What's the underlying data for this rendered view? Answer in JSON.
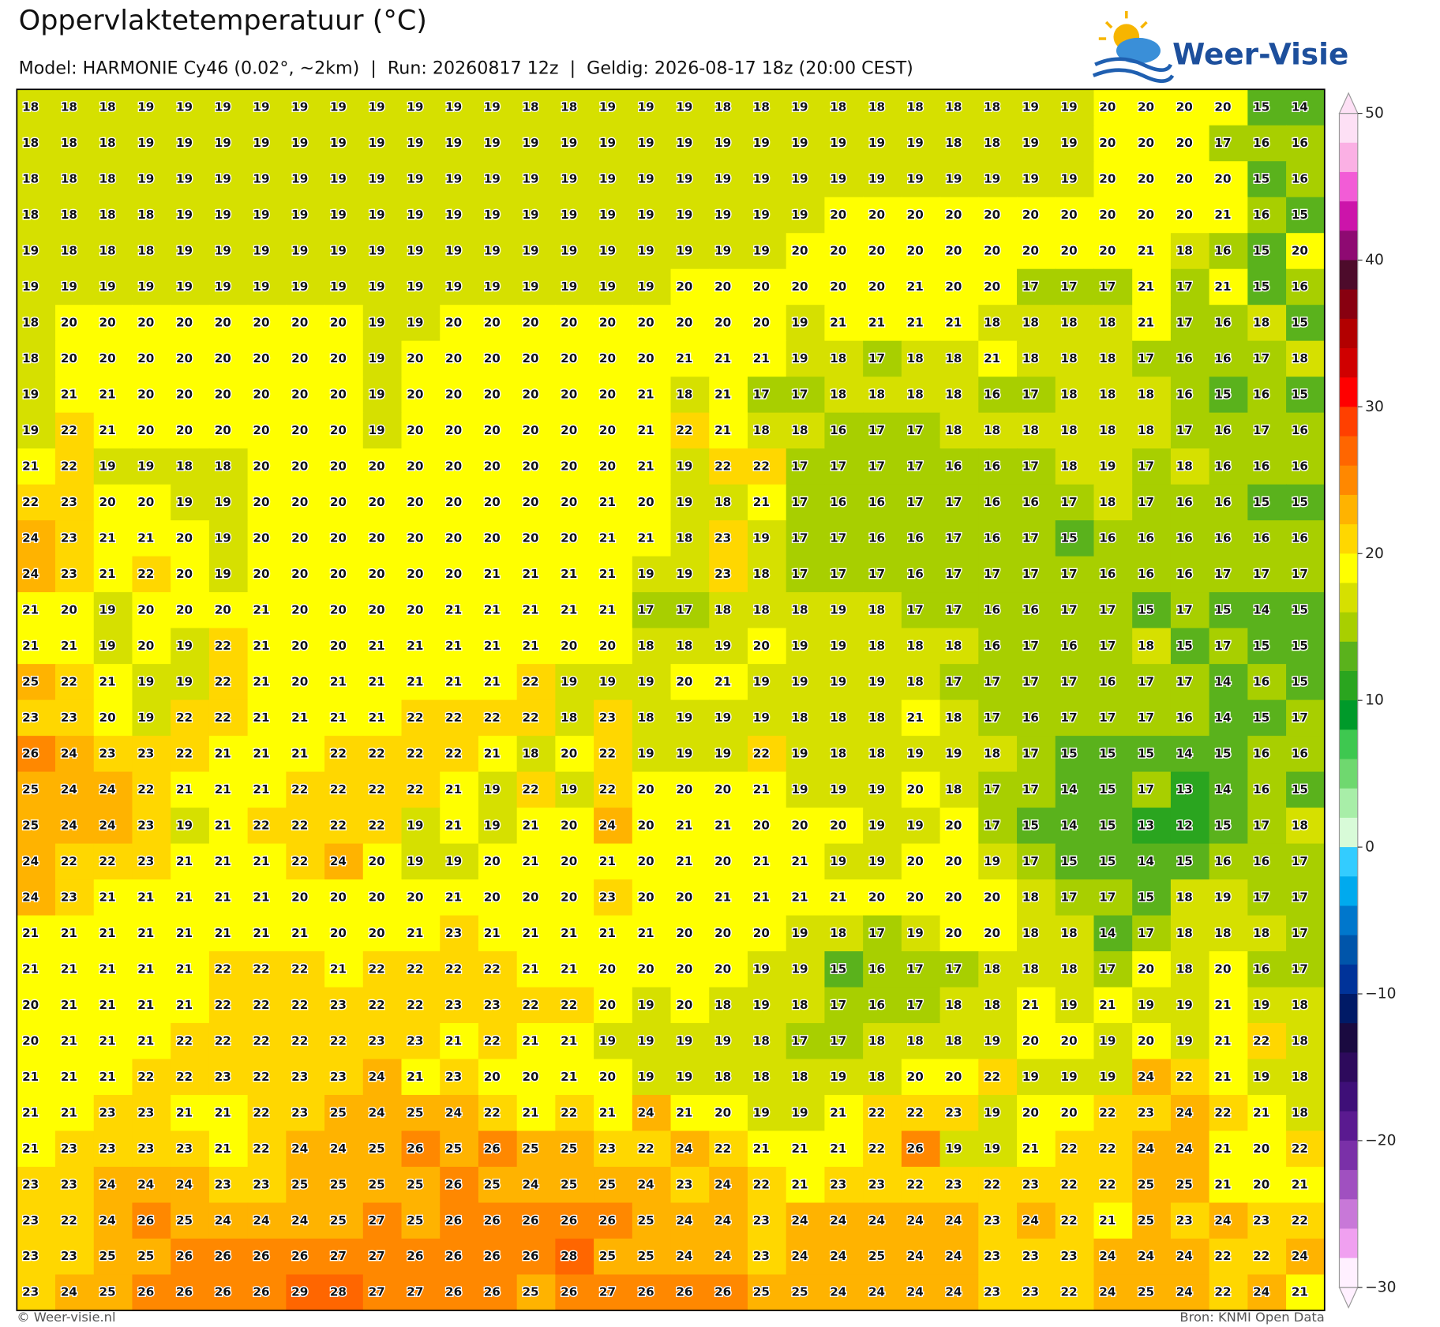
{
  "header": {
    "title": "Oppervlaktetemperatuur (°C)",
    "subtitle": "Model: HARMONIE Cy46 (0.02°, ~2km)  |  Run: 20260817 12z  |  Geldig: 2026-08-17 18z (20:00 CEST)",
    "logo": "Weer-Visie"
  },
  "footer": {
    "left": "© Weer-visie.nl",
    "right": "Bron: KNMI Open Data"
  },
  "colorbar": {
    "lim": [
      -30,
      50
    ],
    "colors": [
      "#fde0f5",
      "#fbb0e4",
      "#f25cd6",
      "#cc14aa",
      "#8e0a72",
      "#4d0b2b",
      "#880010",
      "#b20000",
      "#d00000",
      "#ff0000",
      "#ff4000",
      "#ff6600",
      "#ff8800",
      "#ffb300",
      "#ffd700",
      "#ffff00",
      "#d6e000",
      "#a8cf00",
      "#5ab21c",
      "#2aa51f",
      "#009a2a",
      "#3ec850",
      "#6fd86f",
      "#a8eea8",
      "#d8fbd8",
      "#33ccff",
      "#00aaee",
      "#0077cc",
      "#0055aa",
      "#003399",
      "#001a66",
      "#1a0a40",
      "#2d0a5c",
      "#3e0f78",
      "#5a1a90",
      "#7a30a8",
      "#a050c0",
      "#c878d8",
      "#f0a0f0",
      "#fff0ff"
    ],
    "ticks": [
      50,
      40,
      30,
      20,
      10,
      0,
      {
        "value": -10,
        "label": "−10"
      },
      {
        "value": -20,
        "label": "−20"
      },
      {
        "value": -30,
        "label": "−30"
      }
    ]
  },
  "grid": {
    "rows": [
      [
        18,
        18,
        18,
        19,
        19,
        19,
        19,
        19,
        19,
        19,
        19,
        19,
        19,
        18,
        18,
        19,
        19,
        19,
        18,
        18,
        19,
        18,
        18,
        18,
        18,
        18,
        19,
        19,
        20,
        20,
        20,
        20,
        15,
        14
      ],
      [
        18,
        18,
        18,
        19,
        19,
        19,
        19,
        19,
        19,
        19,
        19,
        19,
        19,
        19,
        19,
        19,
        19,
        19,
        19,
        19,
        19,
        19,
        19,
        19,
        18,
        18,
        19,
        19,
        20,
        20,
        20,
        17,
        16,
        16
      ],
      [
        18,
        18,
        18,
        19,
        19,
        19,
        19,
        19,
        19,
        19,
        19,
        19,
        19,
        19,
        19,
        19,
        19,
        19,
        19,
        19,
        19,
        19,
        19,
        19,
        19,
        19,
        19,
        19,
        20,
        20,
        20,
        20,
        15,
        16
      ],
      [
        18,
        18,
        18,
        18,
        19,
        19,
        19,
        19,
        19,
        19,
        19,
        19,
        19,
        19,
        19,
        19,
        19,
        19,
        19,
        19,
        19,
        20,
        20,
        20,
        20,
        20,
        20,
        20,
        20,
        20,
        20,
        21,
        16,
        15
      ],
      [
        19,
        18,
        18,
        18,
        19,
        19,
        19,
        19,
        19,
        19,
        19,
        19,
        19,
        19,
        19,
        19,
        19,
        19,
        19,
        19,
        20,
        20,
        20,
        20,
        20,
        20,
        20,
        20,
        20,
        21,
        18,
        16,
        15,
        20
      ],
      [
        19,
        19,
        19,
        19,
        19,
        19,
        19,
        19,
        19,
        19,
        19,
        19,
        19,
        19,
        19,
        19,
        19,
        20,
        20,
        20,
        20,
        20,
        20,
        21,
        20,
        20,
        17,
        17,
        17,
        21,
        17,
        21,
        15,
        16
      ],
      [
        18,
        20,
        20,
        20,
        20,
        20,
        20,
        20,
        20,
        19,
        19,
        20,
        20,
        20,
        20,
        20,
        20,
        20,
        20,
        20,
        19,
        21,
        21,
        21,
        21,
        18,
        18,
        18,
        18,
        21,
        17,
        16,
        18,
        15
      ],
      [
        18,
        20,
        20,
        20,
        20,
        20,
        20,
        20,
        20,
        19,
        20,
        20,
        20,
        20,
        20,
        20,
        20,
        21,
        21,
        21,
        19,
        18,
        17,
        18,
        18,
        21,
        18,
        18,
        18,
        17,
        16,
        16,
        17,
        18
      ],
      [
        19,
        21,
        21,
        20,
        20,
        20,
        20,
        20,
        20,
        19,
        20,
        20,
        20,
        20,
        20,
        20,
        21,
        18,
        21,
        17,
        17,
        18,
        18,
        18,
        18,
        16,
        17,
        18,
        18,
        18,
        16,
        15,
        16,
        15
      ],
      [
        19,
        22,
        21,
        20,
        20,
        20,
        20,
        20,
        20,
        19,
        20,
        20,
        20,
        20,
        20,
        20,
        21,
        22,
        21,
        18,
        18,
        16,
        17,
        17,
        18,
        18,
        18,
        18,
        18,
        18,
        17,
        16,
        17,
        16
      ],
      [
        21,
        22,
        19,
        19,
        18,
        18,
        20,
        20,
        20,
        20,
        20,
        20,
        20,
        20,
        20,
        20,
        21,
        19,
        22,
        22,
        17,
        17,
        17,
        17,
        16,
        16,
        17,
        18,
        19,
        17,
        18,
        16,
        16,
        16
      ],
      [
        22,
        23,
        20,
        20,
        19,
        19,
        20,
        20,
        20,
        20,
        20,
        20,
        20,
        20,
        20,
        21,
        20,
        19,
        18,
        21,
        17,
        16,
        16,
        17,
        17,
        16,
        16,
        17,
        18,
        17,
        16,
        16,
        15,
        15
      ],
      [
        24,
        23,
        21,
        21,
        20,
        19,
        20,
        20,
        20,
        20,
        20,
        20,
        20,
        20,
        20,
        21,
        21,
        18,
        23,
        19,
        17,
        17,
        16,
        16,
        17,
        16,
        17,
        15,
        16,
        16,
        16,
        16,
        16,
        16
      ],
      [
        24,
        23,
        21,
        22,
        20,
        19,
        20,
        20,
        20,
        20,
        20,
        20,
        21,
        21,
        21,
        21,
        19,
        19,
        23,
        18,
        17,
        17,
        17,
        16,
        17,
        17,
        17,
        17,
        16,
        16,
        16,
        17,
        17,
        17
      ],
      [
        21,
        20,
        19,
        20,
        20,
        20,
        21,
        20,
        20,
        20,
        20,
        21,
        21,
        21,
        21,
        21,
        17,
        17,
        18,
        18,
        18,
        19,
        18,
        17,
        17,
        16,
        16,
        17,
        17,
        15,
        17,
        15,
        14,
        15
      ],
      [
        21,
        21,
        19,
        20,
        19,
        22,
        21,
        20,
        20,
        21,
        21,
        21,
        21,
        21,
        20,
        20,
        18,
        18,
        19,
        20,
        19,
        19,
        18,
        18,
        18,
        16,
        17,
        16,
        17,
        18,
        15,
        17,
        15,
        15
      ],
      [
        25,
        22,
        21,
        19,
        19,
        22,
        21,
        20,
        21,
        21,
        21,
        21,
        21,
        22,
        19,
        19,
        19,
        20,
        21,
        19,
        19,
        19,
        19,
        18,
        17,
        17,
        17,
        17,
        16,
        17,
        17,
        14,
        16,
        15
      ],
      [
        23,
        23,
        20,
        19,
        22,
        22,
        21,
        21,
        21,
        21,
        22,
        22,
        22,
        22,
        18,
        23,
        18,
        19,
        19,
        19,
        18,
        18,
        18,
        21,
        18,
        17,
        16,
        17,
        17,
        17,
        16,
        14,
        15,
        17
      ],
      [
        26,
        24,
        23,
        23,
        22,
        21,
        21,
        21,
        22,
        22,
        22,
        22,
        21,
        18,
        20,
        22,
        19,
        19,
        19,
        22,
        19,
        18,
        18,
        19,
        19,
        18,
        17,
        15,
        15,
        15,
        14,
        15,
        16,
        16
      ],
      [
        25,
        24,
        24,
        22,
        21,
        21,
        21,
        22,
        22,
        22,
        22,
        21,
        19,
        22,
        19,
        22,
        20,
        20,
        20,
        21,
        19,
        19,
        19,
        20,
        18,
        17,
        17,
        14,
        15,
        17,
        13,
        14,
        16,
        15
      ],
      [
        25,
        24,
        24,
        23,
        19,
        21,
        22,
        22,
        22,
        22,
        19,
        21,
        19,
        21,
        20,
        24,
        20,
        21,
        21,
        20,
        20,
        20,
        19,
        19,
        20,
        17,
        15,
        14,
        15,
        13,
        12,
        15,
        17,
        18
      ],
      [
        24,
        22,
        22,
        23,
        21,
        21,
        21,
        22,
        24,
        20,
        19,
        19,
        20,
        21,
        20,
        21,
        20,
        21,
        20,
        21,
        21,
        19,
        19,
        20,
        20,
        19,
        17,
        15,
        15,
        14,
        15,
        16,
        16,
        17
      ],
      [
        24,
        23,
        21,
        21,
        21,
        21,
        21,
        20,
        20,
        20,
        20,
        21,
        20,
        20,
        20,
        23,
        20,
        20,
        21,
        21,
        21,
        21,
        20,
        20,
        20,
        20,
        18,
        17,
        17,
        15,
        18,
        19,
        17,
        17
      ],
      [
        21,
        21,
        21,
        21,
        21,
        21,
        21,
        21,
        20,
        20,
        21,
        23,
        21,
        21,
        21,
        21,
        21,
        20,
        20,
        20,
        19,
        18,
        17,
        19,
        20,
        20,
        18,
        18,
        14,
        17,
        18,
        18,
        18,
        17
      ],
      [
        21,
        21,
        21,
        21,
        21,
        22,
        22,
        22,
        21,
        22,
        22,
        22,
        22,
        21,
        21,
        20,
        20,
        20,
        20,
        19,
        19,
        15,
        16,
        17,
        17,
        18,
        18,
        18,
        17,
        20,
        18,
        20,
        16,
        17
      ],
      [
        20,
        21,
        21,
        21,
        21,
        22,
        22,
        22,
        23,
        22,
        22,
        23,
        23,
        22,
        22,
        20,
        19,
        20,
        18,
        19,
        18,
        17,
        16,
        17,
        18,
        18,
        21,
        19,
        21,
        19,
        19,
        21,
        19,
        18
      ],
      [
        20,
        21,
        21,
        21,
        22,
        22,
        22,
        22,
        22,
        23,
        23,
        21,
        22,
        21,
        21,
        19,
        19,
        19,
        19,
        18,
        17,
        17,
        18,
        18,
        18,
        19,
        20,
        20,
        19,
        20,
        19,
        21,
        22,
        18
      ],
      [
        21,
        21,
        21,
        22,
        22,
        23,
        22,
        23,
        23,
        24,
        21,
        23,
        20,
        20,
        21,
        20,
        19,
        19,
        18,
        18,
        18,
        19,
        18,
        20,
        20,
        22,
        19,
        19,
        19,
        24,
        22,
        21,
        19,
        18
      ],
      [
        21,
        21,
        23,
        23,
        21,
        21,
        22,
        23,
        25,
        24,
        25,
        24,
        22,
        21,
        22,
        21,
        24,
        21,
        20,
        19,
        19,
        21,
        22,
        22,
        23,
        19,
        20,
        20,
        22,
        23,
        24,
        22,
        21,
        18
      ],
      [
        21,
        23,
        23,
        23,
        23,
        21,
        22,
        24,
        24,
        25,
        26,
        25,
        26,
        25,
        25,
        23,
        22,
        24,
        22,
        21,
        21,
        21,
        22,
        26,
        19,
        19,
        21,
        22,
        22,
        24,
        24,
        21,
        20,
        22
      ],
      [
        23,
        23,
        24,
        24,
        24,
        23,
        23,
        25,
        25,
        25,
        25,
        26,
        25,
        24,
        25,
        25,
        24,
        23,
        24,
        22,
        21,
        23,
        23,
        22,
        23,
        22,
        23,
        22,
        22,
        25,
        25,
        21,
        20,
        21
      ],
      [
        23,
        22,
        24,
        26,
        25,
        24,
        24,
        24,
        25,
        27,
        25,
        26,
        26,
        26,
        26,
        26,
        25,
        24,
        24,
        23,
        24,
        24,
        24,
        24,
        24,
        23,
        24,
        22,
        21,
        25,
        23,
        24,
        23,
        22
      ],
      [
        23,
        23,
        25,
        25,
        26,
        26,
        26,
        26,
        27,
        27,
        26,
        26,
        26,
        26,
        28,
        25,
        25,
        24,
        24,
        23,
        24,
        24,
        25,
        24,
        24,
        23,
        23,
        23,
        24,
        24,
        24,
        22,
        22,
        24
      ],
      [
        23,
        24,
        25,
        26,
        26,
        26,
        26,
        29,
        28,
        27,
        27,
        26,
        26,
        25,
        26,
        27,
        26,
        26,
        26,
        25,
        25,
        24,
        24,
        24,
        24,
        23,
        23,
        22,
        24,
        25,
        24,
        22,
        24,
        21
      ]
    ]
  }
}
